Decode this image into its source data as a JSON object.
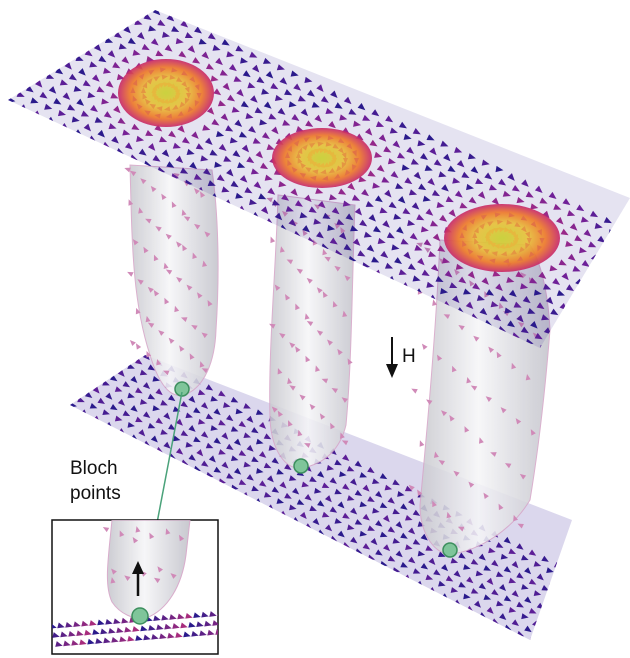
{
  "labels": {
    "field": "H",
    "bloch_line1": "Bloch",
    "bloch_line2": "points"
  },
  "colors": {
    "plane_low": "#2a1a8c",
    "plane_mid": "#6a1f9a",
    "plane_high": "#c0307a",
    "core_outer": "#e0404a",
    "core_mid": "#f08a2a",
    "core_inner": "#e8e03a",
    "tube_fill": "#e4e4e8",
    "tube_cone": "#d08ab8",
    "bloch_point": "#7fc59a",
    "bloch_point_stroke": "#3d8f5e",
    "connector": "#4aa27a",
    "arrow": "#111111"
  },
  "icons": {
    "field_arrow": "down-arrow-icon",
    "inset_arrow": "up-arrow-icon"
  }
}
